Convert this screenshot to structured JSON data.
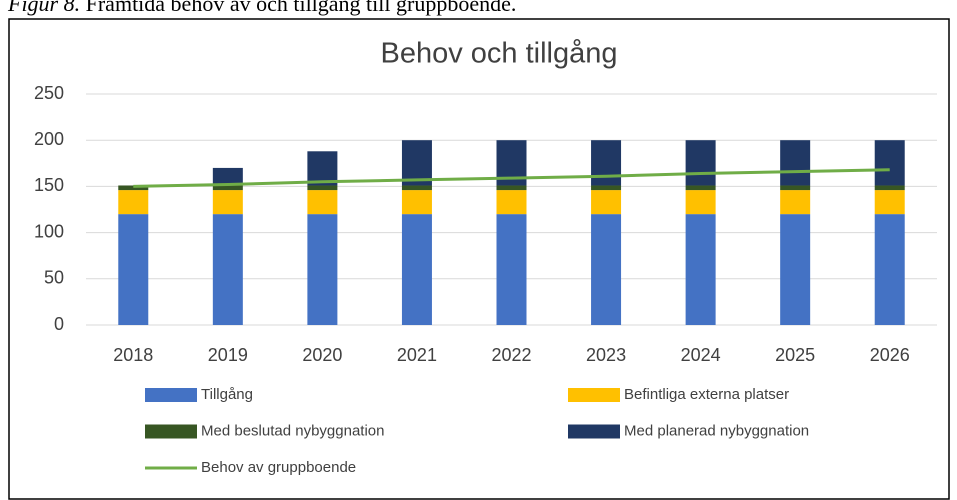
{
  "caption_label": "Figur 8.",
  "caption": "Framtida behov av och tillgång till gruppboende.",
  "chart_data": {
    "type": "bar",
    "stacked": true,
    "title": "Behov och tillgång",
    "categories": [
      "2018",
      "2019",
      "2020",
      "2021",
      "2022",
      "2023",
      "2024",
      "2025",
      "2026"
    ],
    "series": [
      {
        "name": "Tillgång",
        "color": "#4472c4",
        "values": [
          120,
          120,
          120,
          120,
          120,
          120,
          120,
          120,
          120
        ]
      },
      {
        "name": "Befintliga externa platser",
        "color": "#ffc000",
        "values": [
          26,
          26,
          26,
          26,
          26,
          26,
          26,
          26,
          26
        ]
      },
      {
        "name": "Med beslutad nybyggnation",
        "color": "#375623",
        "values": [
          5,
          5,
          5,
          5,
          5,
          5,
          5,
          5,
          5
        ]
      },
      {
        "name": "Med planerad nybyggnation",
        "color": "#203864",
        "values": [
          0,
          19,
          37,
          49,
          49,
          49,
          49,
          49,
          49
        ]
      },
      {
        "name": "Behov av gruppboende",
        "color": "#70ad47",
        "type": "line",
        "values": [
          150,
          152,
          155,
          157,
          159,
          161,
          164,
          166,
          168
        ]
      }
    ],
    "ylim": [
      0,
      250
    ],
    "yticks": [
      0,
      50,
      100,
      150,
      200,
      250
    ],
    "grid": true,
    "legend": "bottom"
  }
}
